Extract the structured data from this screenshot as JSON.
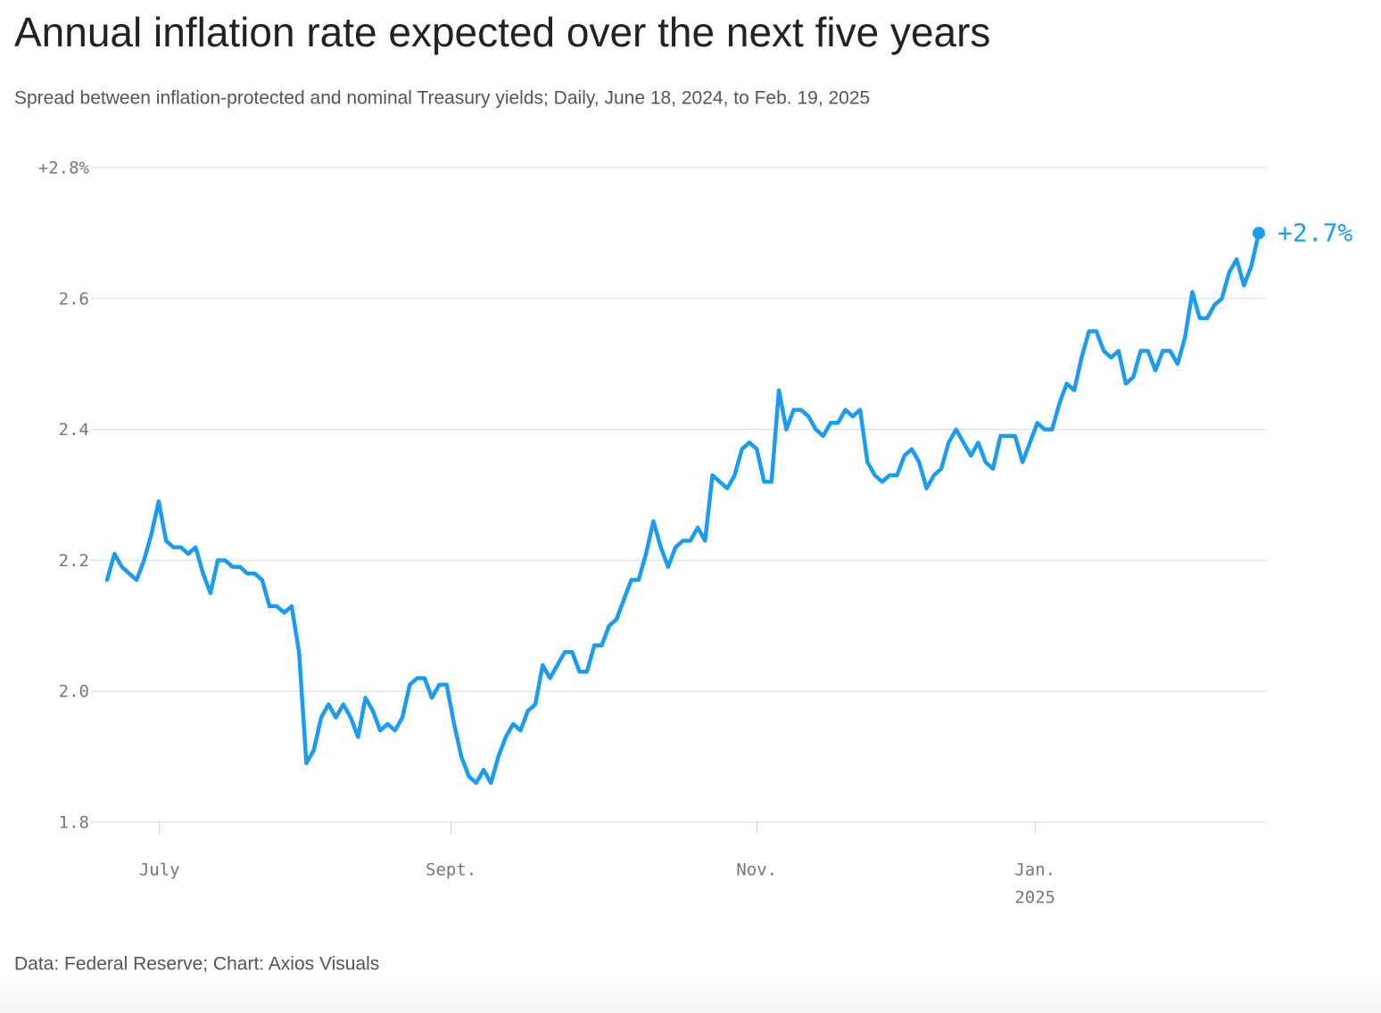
{
  "chart_data": {
    "type": "line",
    "title": "Annual inflation rate expected over the next five years",
    "subtitle": "Spread between inflation-protected and nominal Treasury yields; Daily, June 18, 2024, to Feb. 19, 2025",
    "source": "Data: Federal Reserve; Chart: Axios Visuals",
    "color": "#1a9cf5",
    "end_label": "+2.7%",
    "grid": true,
    "ylim": [
      1.8,
      2.8
    ],
    "yticks": [
      {
        "value": 1.8,
        "label": "1.8"
      },
      2.2,
      2.4,
      2.6,
      {
        "value": 2.0,
        "label": "2.0"
      },
      {
        "value": 2.8,
        "label": "+2.8%"
      }
    ],
    "xlim": [
      0,
      156
    ],
    "xticks": [
      {
        "value": 7.1,
        "label": "July"
      },
      {
        "value": 46.6,
        "label": "Sept."
      },
      {
        "value": 88,
        "label": "Nov."
      },
      {
        "value": 125.7,
        "label": "Jan.",
        "year": "2025"
      }
    ],
    "values": [
      2.17,
      2.21,
      2.19,
      2.18,
      2.17,
      2.2,
      2.24,
      2.29,
      2.23,
      2.22,
      2.22,
      2.21,
      2.22,
      2.18,
      2.15,
      2.2,
      2.2,
      2.19,
      2.19,
      2.18,
      2.18,
      2.17,
      2.13,
      2.13,
      2.12,
      2.13,
      2.06,
      1.89,
      1.91,
      1.96,
      1.98,
      1.96,
      1.98,
      1.96,
      1.93,
      1.99,
      1.97,
      1.94,
      1.95,
      1.94,
      1.96,
      2.01,
      2.02,
      2.02,
      1.99,
      2.01,
      2.01,
      1.95,
      1.9,
      1.87,
      1.86,
      1.88,
      1.86,
      1.9,
      1.93,
      1.95,
      1.94,
      1.97,
      1.98,
      2.04,
      2.02,
      2.04,
      2.06,
      2.06,
      2.03,
      2.03,
      2.07,
      2.07,
      2.1,
      2.11,
      2.14,
      2.17,
      2.17,
      2.21,
      2.26,
      2.22,
      2.19,
      2.22,
      2.23,
      2.23,
      2.25,
      2.23,
      2.33,
      2.32,
      2.31,
      2.33,
      2.37,
      2.38,
      2.37,
      2.32,
      2.32,
      2.46,
      2.4,
      2.43,
      2.43,
      2.42,
      2.4,
      2.39,
      2.41,
      2.41,
      2.43,
      2.42,
      2.43,
      2.35,
      2.33,
      2.32,
      2.33,
      2.33,
      2.36,
      2.37,
      2.35,
      2.31,
      2.33,
      2.34,
      2.38,
      2.4,
      2.38,
      2.36,
      2.38,
      2.35,
      2.34,
      2.39,
      2.39,
      2.39,
      2.35,
      2.38,
      2.41,
      2.4,
      2.4,
      2.44,
      2.47,
      2.46,
      2.51,
      2.55,
      2.55,
      2.52,
      2.51,
      2.52,
      2.47,
      2.48,
      2.52,
      2.52,
      2.49,
      2.52,
      2.52,
      2.5,
      2.54,
      2.61,
      2.57,
      2.57,
      2.59,
      2.6,
      2.64,
      2.66,
      2.62,
      2.65,
      2.7
    ]
  }
}
